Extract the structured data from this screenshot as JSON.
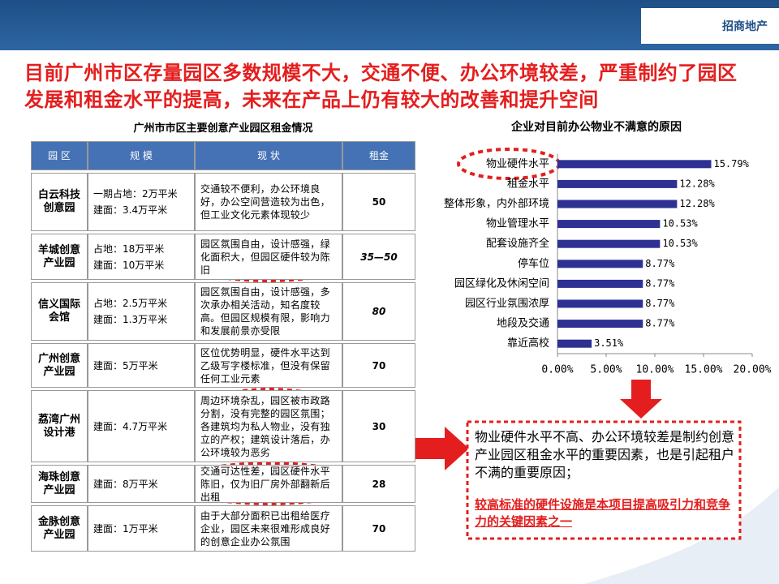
{
  "header": {
    "title": "目前广州市区存量园区多数规模不大，交通不便、办公环境较差，严重制约了园区发展和租金水平的提高，未来在产品上仍有较大的改善和提升空间",
    "logo": "招商地产"
  },
  "table": {
    "caption": "广州市市区主要创意产业园区租金情况",
    "columns": [
      "园 区",
      "规 模",
      "现 状",
      "租金"
    ],
    "rows": [
      {
        "name": [
          "白云科技",
          "创意园"
        ],
        "scale": [
          "一期占地：2万平米",
          "建面：3.4万平米"
        ],
        "status": "交通较不便利，办公环境良好，办公空间营造较为出色，但工业文化元素体现较少",
        "rent": "50"
      },
      {
        "name": [
          "羊城创意",
          "产业园"
        ],
        "scale": [
          "占地：18万平米",
          "建面：10万平米"
        ],
        "status": "园区氛围自由，设计感强，绿化面积大，但园区硬件较为陈旧",
        "rent": "35—50"
      },
      {
        "name": [
          "信义国际",
          "会馆"
        ],
        "scale": [
          "占地：2.5万平米",
          "建面：1.3万平米"
        ],
        "status": "园区氛围自由，设计感强，多次承办相关活动，知名度较高。但园区规模有限，影响力和发展前景亦受限",
        "rent": "80"
      },
      {
        "name": [
          "广州创意",
          "产业园"
        ],
        "scale": [
          "建面：5万平米"
        ],
        "status": "区位优势明显，硬件水平达到乙级写字楼标准，但没有保留任何工业元素",
        "rent": "70"
      },
      {
        "name": [
          "荔湾广州",
          "设计港"
        ],
        "scale": [
          "建面：4.7万平米"
        ],
        "status": "周边环境杂乱，园区被市政路分割，没有完整的园区氛围；各建筑均为私人物业，没有独立的产权；建筑设计落后，办公环境较为恶劣",
        "rent": "30"
      },
      {
        "name": [
          "海珠创意",
          "产业园"
        ],
        "scale": [
          "建面：8万平米"
        ],
        "status": "交通可达性差，园区硬件水平陈旧，仅为旧厂房外部翻新后出租",
        "rent": "28"
      },
      {
        "name": [
          "金脉创意",
          "产业园"
        ],
        "scale": [
          "建面：1万平米"
        ],
        "status": "由于大部分面积已出租给医疗企业，园区未来很难形成良好的创意企业办公氛围",
        "rent": "70"
      }
    ]
  },
  "chart_data": {
    "type": "hbar",
    "title": "企业对目前办公物业不满意的原因",
    "categories": [
      "物业硬件水平",
      "租金水平",
      "整体形象，内外部环境",
      "物业管理水平",
      "配套设施齐全",
      "停车位",
      "园区绿化及休闲空间",
      "园区行业氛围浓厚",
      "地段及交通",
      "靠近高校"
    ],
    "values": [
      15.79,
      12.28,
      12.28,
      10.53,
      10.53,
      8.77,
      8.77,
      8.77,
      8.77,
      3.51
    ],
    "value_labels": [
      "15.79%",
      "12.28%",
      "12.28%",
      "10.53%",
      "10.53%",
      "8.77%",
      "8.77%",
      "8.77%",
      "8.77%",
      "3.51%"
    ],
    "color": "#2e3192",
    "xlim": [
      0,
      20
    ],
    "xticks": [
      {
        "value": 0,
        "label": "0.00%"
      },
      {
        "value": 5,
        "label": "5.00%"
      },
      {
        "value": 10,
        "label": "10.00%"
      },
      {
        "value": 15,
        "label": "15.00%"
      },
      {
        "value": 20,
        "label": "20.00%"
      }
    ]
  },
  "callout": {
    "text": "物业硬件水平不高、办公环境较差是制约创意产业园区租金水平的重要因素，也是引起租户不满的重要原因；",
    "emphasis": "较高标准的硬件设施是本项目提高吸引力和竞争力的关键因素之一"
  }
}
